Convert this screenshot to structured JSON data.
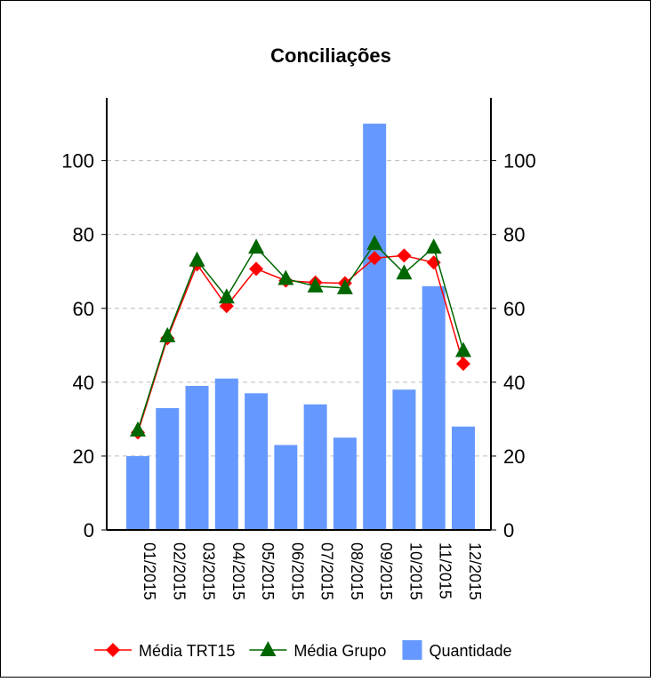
{
  "chart_data": {
    "type": "bar-line",
    "title": "Conciliações",
    "categories": [
      "01/2015",
      "02/2015",
      "03/2015",
      "04/2015",
      "05/2015",
      "06/2015",
      "07/2015",
      "08/2015",
      "09/2015",
      "10/2015",
      "11/2015",
      "12/2015"
    ],
    "series": [
      {
        "name": "Média TRT15",
        "color": "#ff0000",
        "kind": "line",
        "marker": "diamond",
        "values": [
          26.4,
          51.9,
          71.9,
          60.6,
          70.7,
          67.5,
          67,
          66.8,
          73.6,
          74.3,
          72.4,
          45
        ]
      },
      {
        "name": "Média Grupo",
        "color": "#006600",
        "kind": "line",
        "marker": "triangle",
        "values": [
          27,
          52.5,
          73,
          63,
          76.5,
          68,
          66,
          65.5,
          77.5,
          69.5,
          76.5,
          48.5
        ]
      },
      {
        "name": "Quantidade",
        "color": "#6699ff",
        "kind": "bar",
        "values": [
          20,
          33,
          39,
          41,
          37,
          23,
          34,
          25,
          110,
          38,
          66,
          28
        ]
      }
    ],
    "ylim": [
      0,
      117
    ],
    "yticks": [
      0,
      20,
      40,
      60,
      80,
      100
    ],
    "y2lim": [
      0,
      117
    ],
    "y2ticks": [
      0,
      20,
      40,
      60,
      80,
      100
    ],
    "grid": true,
    "legend": "bottom"
  }
}
